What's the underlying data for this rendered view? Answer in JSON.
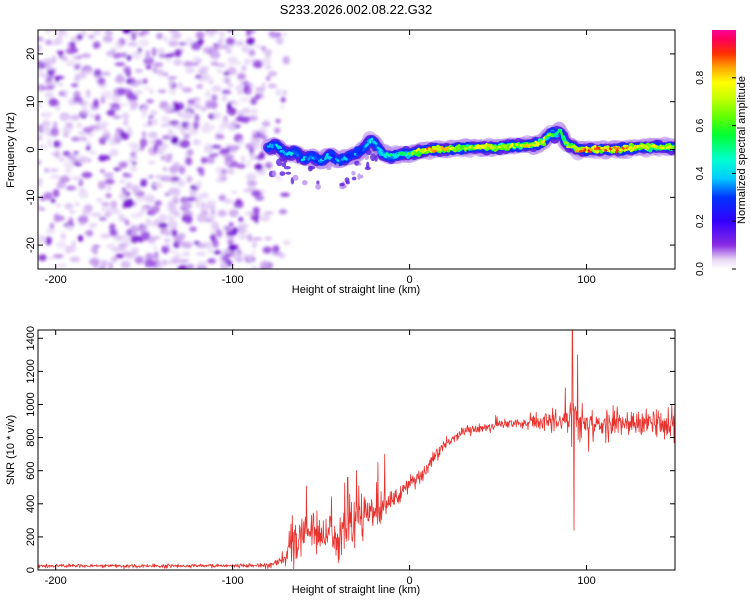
{
  "figure": {
    "title": "S233.2026.002.08.22.G32"
  },
  "colors": {
    "snr_line": "#e8322e",
    "axis": "#000000",
    "background": "#ffffff"
  },
  "chart_data": [
    {
      "type": "heatmap",
      "name": "spectrogram",
      "title": "S233.2026.002.08.22.G32",
      "xlabel": "Height of straight line (km)",
      "ylabel": "Frequency (Hz)",
      "xlim": [
        -210,
        150
      ],
      "ylim": [
        -25,
        25
      ],
      "xticks": [
        -200,
        -100,
        0,
        100
      ],
      "yticks": [
        -20,
        -10,
        0,
        10,
        20
      ],
      "noise_region": {
        "x_range": [
          -210,
          -75
        ],
        "description": "scattered weak purple noise"
      },
      "signal_ridge": {
        "x": [
          -80,
          -75,
          -70,
          -65,
          -60,
          -55,
          -50,
          -45,
          -40,
          -35,
          -30,
          -25,
          -22,
          -20,
          -15,
          -10,
          -5,
          0,
          5,
          10,
          20,
          30,
          40,
          50,
          60,
          70,
          75,
          80,
          82,
          85,
          88,
          90,
          95,
          100,
          110,
          120,
          130,
          140,
          150
        ],
        "frequency": [
          0.5,
          0.8,
          -1.0,
          -0.5,
          -2.0,
          -1.5,
          -2.5,
          -1.0,
          -2.5,
          -1.5,
          -1.0,
          0.5,
          2.0,
          1.5,
          -1.0,
          -1.5,
          -1.0,
          -1.0,
          -0.5,
          0,
          0,
          0.3,
          0.5,
          0.5,
          0.8,
          1.0,
          1.5,
          3.5,
          3.0,
          4.0,
          1.5,
          1.0,
          0,
          0,
          0,
          0,
          0.5,
          0.5,
          0.5
        ],
        "amplitude": [
          0.3,
          0.35,
          0.4,
          0.35,
          0.35,
          0.3,
          0.35,
          0.3,
          0.3,
          0.3,
          0.35,
          0.35,
          0.4,
          0.4,
          0.45,
          0.5,
          0.5,
          0.55,
          0.7,
          0.85,
          0.75,
          0.7,
          0.75,
          0.7,
          0.7,
          0.75,
          0.7,
          0.55,
          0.5,
          0.45,
          0.6,
          0.7,
          0.8,
          0.85,
          0.85,
          0.8,
          0.75,
          0.7,
          0.7
        ]
      }
    },
    {
      "type": "colorbar",
      "name": "amplitude-colorbar",
      "label": "Normalized spectral amplitude",
      "range": [
        0,
        1
      ],
      "ticks": [
        "0.0",
        "0.2",
        "0.4",
        "0.6",
        "0.8"
      ]
    },
    {
      "type": "line",
      "name": "snr",
      "xlabel": "Height of straight line (km)",
      "ylabel": "SNR (10 * v/v)",
      "xlim": [
        -210,
        150
      ],
      "ylim": [
        0,
        1450
      ],
      "xticks": [
        -200,
        -100,
        0,
        100
      ],
      "yticks": [
        0,
        200,
        400,
        600,
        800,
        1000,
        1200,
        1400
      ],
      "envelope": {
        "x": [
          -210,
          -150,
          -100,
          -80,
          -72,
          -65,
          -60,
          -55,
          -50,
          -45,
          -40,
          -35,
          -30,
          -25,
          -20,
          -15,
          -10,
          -5,
          0,
          5,
          10,
          15,
          20,
          30,
          40,
          50,
          60,
          70,
          80,
          88,
          95,
          100,
          110,
          120,
          130,
          140,
          150
        ],
        "mean": [
          25,
          25,
          25,
          28,
          60,
          180,
          220,
          250,
          200,
          250,
          180,
          260,
          300,
          380,
          320,
          380,
          420,
          460,
          520,
          560,
          620,
          700,
          760,
          830,
          860,
          880,
          890,
          890,
          900,
          900,
          900,
          880,
          870,
          880,
          880,
          880,
          890
        ],
        "noise": [
          10,
          10,
          10,
          15,
          40,
          120,
          120,
          110,
          100,
          110,
          90,
          120,
          100,
          110,
          80,
          70,
          60,
          50,
          45,
          45,
          40,
          40,
          35,
          30,
          30,
          30,
          35,
          40,
          60,
          90,
          90,
          90,
          90,
          90,
          90,
          90,
          90
        ]
      },
      "spikes": [
        {
          "x": -35,
          "y": 560
        },
        {
          "x": -30,
          "y": 600
        },
        {
          "x": -18,
          "y": 650
        },
        {
          "x": -14,
          "y": 700
        },
        {
          "x": 88,
          "y": 1100
        },
        {
          "x": 92,
          "y": 1450
        },
        {
          "x": 93,
          "y": 240
        },
        {
          "x": 95,
          "y": 1300
        }
      ]
    }
  ]
}
